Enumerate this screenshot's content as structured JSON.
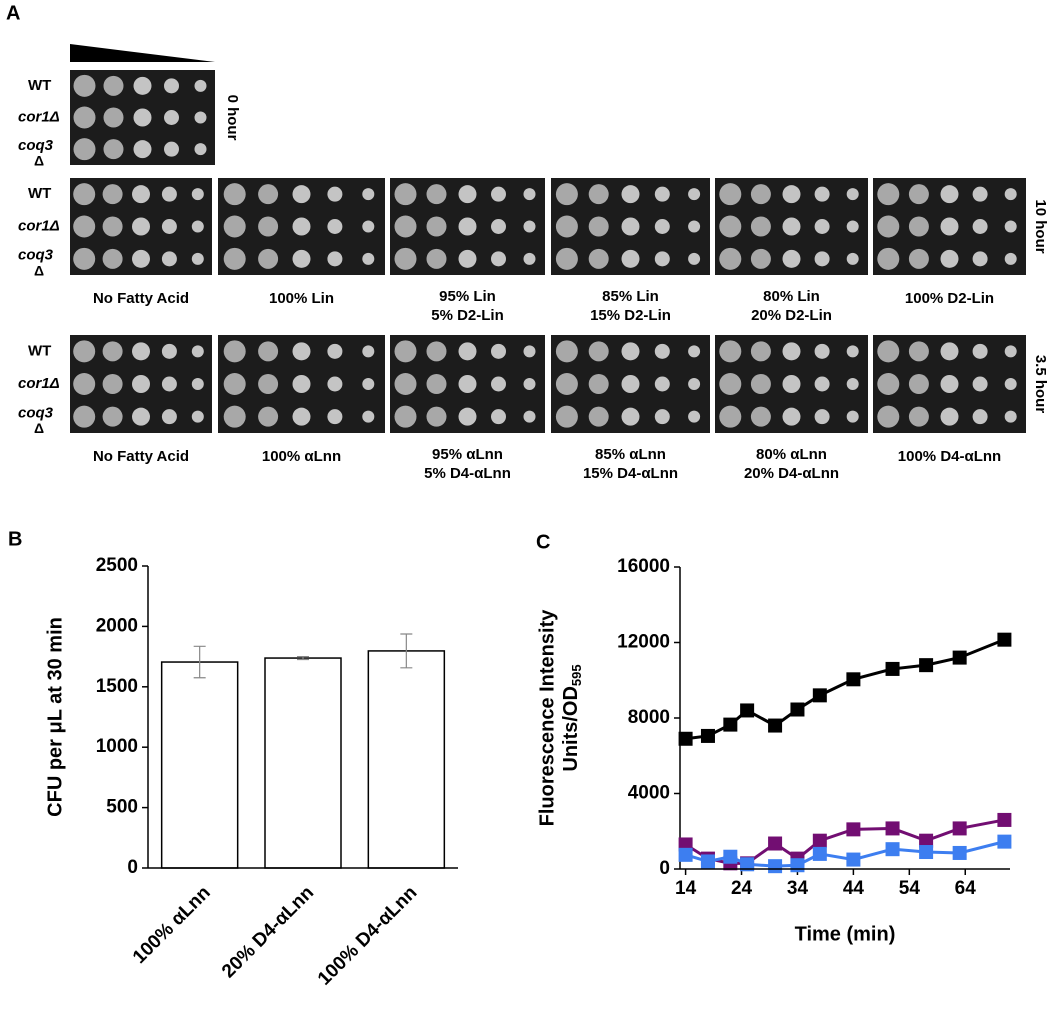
{
  "panel_a": {
    "label": "A",
    "blocks": [
      {
        "time": "0 hour",
        "strains": [
          "WT",
          "cor1Δ",
          "coq3",
          "Δ"
        ],
        "conditions": []
      },
      {
        "time": "10 hour",
        "strains": [
          "WT",
          "cor1Δ",
          "coq3",
          "Δ"
        ],
        "conditions": [
          [
            "No Fatty Acid"
          ],
          [
            "100% Lin"
          ],
          [
            "95% Lin",
            "5% D2-Lin"
          ],
          [
            "85% Lin",
            "15% D2-Lin"
          ],
          [
            "80% Lin",
            "20% D2-Lin"
          ],
          [
            "100% D2-Lin"
          ]
        ]
      },
      {
        "time": "3.5 hour",
        "strains": [
          "WT",
          "cor1Δ",
          "coq3",
          "Δ"
        ],
        "conditions": [
          [
            "No Fatty Acid"
          ],
          [
            "100% αLnn"
          ],
          [
            "95% αLnn",
            "5% D4-αLnn"
          ],
          [
            "85% αLnn",
            "15% D4-αLnn"
          ],
          [
            "80% αLnn",
            "20% D4-αLnn"
          ],
          [
            "100% D4-αLnn"
          ]
        ]
      }
    ]
  },
  "chart_data": [
    {
      "type": "bar",
      "panel_label": "B",
      "ylabel": "CFU per μL at 30 min",
      "categories": [
        "100% αLnn",
        "20% D4-αLnn",
        "100% D4-αLnn"
      ],
      "values": [
        1705,
        1738,
        1797
      ],
      "errors": [
        130,
        12,
        140
      ],
      "color": "#ffffff",
      "ylim": [
        0,
        2500
      ],
      "yticks": [
        0,
        500,
        1000,
        1500,
        2000,
        2500
      ]
    },
    {
      "type": "line",
      "panel_label": "C",
      "ylabel": "Fluorescence Intensity",
      "ylabel2": "Units/OD",
      "ylabel2_sub": "595",
      "xlabel": "Time (min)",
      "x": [
        14,
        18,
        22,
        25,
        30,
        34,
        38,
        44,
        51,
        57,
        63,
        71
      ],
      "series": [
        {
          "color": "#000000",
          "values": [
            6900,
            7050,
            7650,
            8400,
            7600,
            8450,
            9200,
            10050,
            10600,
            10800,
            11200,
            12150
          ]
        },
        {
          "color": "#720e72",
          "values": [
            1300,
            550,
            300,
            300,
            1350,
            550,
            1500,
            2100,
            2150,
            1500,
            2150,
            2600
          ]
        },
        {
          "color": "#3d7ef0",
          "values": [
            750,
            400,
            650,
            250,
            150,
            200,
            800,
            500,
            1050,
            900,
            850,
            1450
          ]
        }
      ],
      "xlim": [
        13,
        72
      ],
      "xticks": [
        14,
        24,
        34,
        44,
        54,
        64
      ],
      "ylim": [
        0,
        16000
      ],
      "yticks": [
        0,
        4000,
        8000,
        12000,
        16000
      ]
    }
  ]
}
